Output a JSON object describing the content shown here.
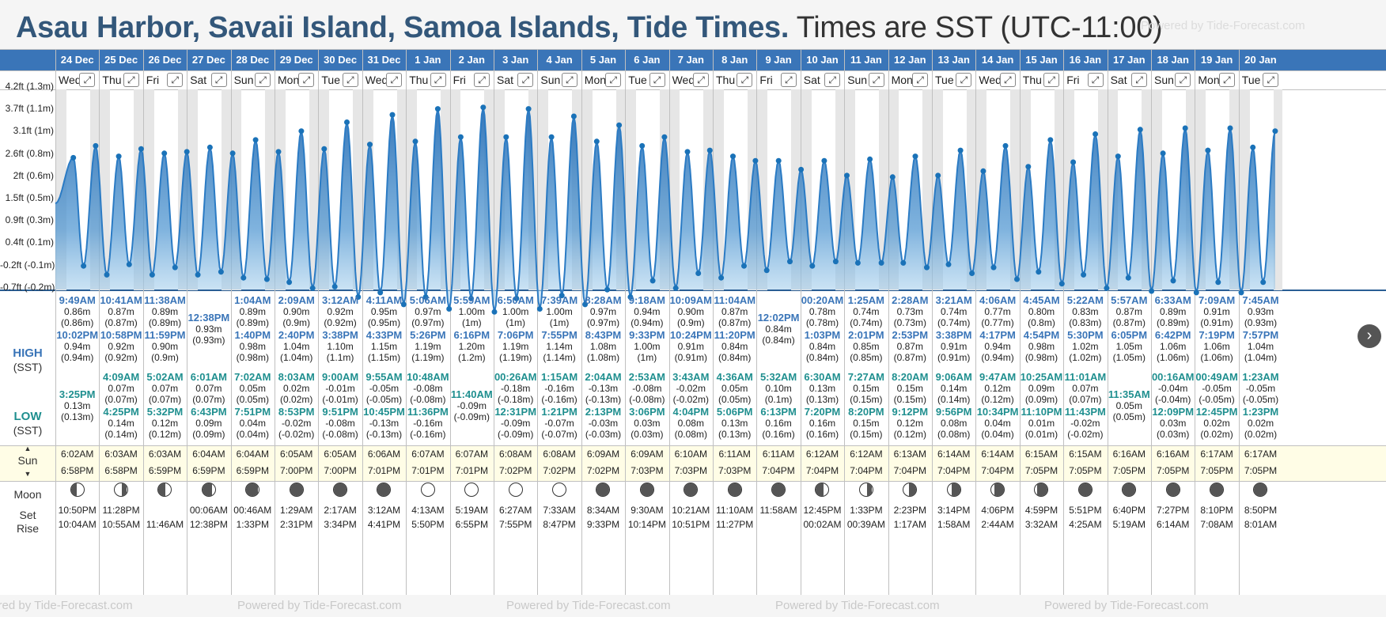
{
  "header": {
    "title_bold": "Asau Harbor, Savaii Island, Samoa Islands, Tide Times.",
    "title_rest": "Times are SST (UTC-11:00)",
    "watermark": "Powered by Tide-Forecast.com"
  },
  "colors": {
    "accent": "#3a75b8",
    "header_bar": "#3a75b8",
    "high_time": "#3a75b8",
    "low_time": "#1f8f8f",
    "sun_band": "#fffde6",
    "night_shade": "#e6e6e6"
  },
  "y_axis": {
    "labels": [
      "4.2ft (1.3m)",
      "3.7ft (1.1m)",
      "3.1ft (1m)",
      "2.6ft (0.8m)",
      "2ft (0.6m)",
      "1.5ft (0.5m)",
      "0.9ft (0.3m)",
      "0.4ft (0.1m)",
      "-0.2ft (-0.1m)",
      "-0.7ft (-0.2m)"
    ]
  },
  "row_headers": {
    "high": "HIGH",
    "high_tz": "(SST)",
    "low": "LOW",
    "low_tz": "(SST)",
    "sun": "Sun",
    "moon": "Moon",
    "set": "Set",
    "rise": "Rise"
  },
  "days": [
    {
      "date": "24 Dec",
      "dow": "Wed",
      "hi": [
        [
          "9:49AM",
          "0.86m",
          "(0.86m)"
        ],
        [
          "10:02PM",
          "0.94m",
          "(0.94m)"
        ]
      ],
      "lo": [
        [
          "3:25PM",
          "0.13m",
          "(0.13m)"
        ]
      ],
      "sunrise": "6:02AM",
      "sunset": "6:58PM",
      "moon_set": "10:50PM",
      "moon_rise": "10:04AM",
      "moon_phase": 0.45
    },
    {
      "date": "25 Dec",
      "dow": "Thu",
      "hi": [
        [
          "10:41AM",
          "0.87m",
          "(0.87m)"
        ],
        [
          "10:58PM",
          "0.92m",
          "(0.92m)"
        ]
      ],
      "lo": [
        [
          "4:09AM",
          "0.07m",
          "(0.07m)"
        ],
        [
          "4:25PM",
          "0.14m",
          "(0.14m)"
        ]
      ],
      "sunrise": "6:03AM",
      "sunset": "6:58PM",
      "moon_set": "11:28PM",
      "moon_rise": "10:55AM",
      "moon_phase": 0.5
    },
    {
      "date": "26 Dec",
      "dow": "Fri",
      "hi": [
        [
          "11:38AM",
          "0.89m",
          "(0.89m)"
        ],
        [
          "11:59PM",
          "0.90m",
          "(0.9m)"
        ]
      ],
      "lo": [
        [
          "5:02AM",
          "0.07m",
          "(0.07m)"
        ],
        [
          "5:32PM",
          "0.12m",
          "(0.12m)"
        ]
      ],
      "sunrise": "6:03AM",
      "sunset": "6:59PM",
      "moon_set": "",
      "moon_rise": "11:46AM",
      "moon_phase": 0.42
    },
    {
      "date": "27 Dec",
      "dow": "Sat",
      "hi": [
        [
          "12:38PM",
          "0.93m",
          "(0.93m)"
        ]
      ],
      "lo": [
        [
          "6:01AM",
          "0.07m",
          "(0.07m)"
        ],
        [
          "6:43PM",
          "0.09m",
          "(0.09m)"
        ]
      ],
      "sunrise": "6:04AM",
      "sunset": "6:59PM",
      "moon_set": "00:06AM",
      "moon_rise": "12:38PM",
      "moon_phase": 0.34
    },
    {
      "date": "28 Dec",
      "dow": "Sun",
      "hi": [
        [
          "1:04AM",
          "0.89m",
          "(0.89m)"
        ],
        [
          "1:40PM",
          "0.98m",
          "(0.98m)"
        ]
      ],
      "lo": [
        [
          "7:02AM",
          "0.05m",
          "(0.05m)"
        ],
        [
          "7:51PM",
          "0.04m",
          "(0.04m)"
        ]
      ],
      "sunrise": "6:04AM",
      "sunset": "6:59PM",
      "moon_set": "00:46AM",
      "moon_rise": "1:33PM",
      "moon_phase": 0.26
    },
    {
      "date": "29 Dec",
      "dow": "Mon",
      "hi": [
        [
          "2:09AM",
          "0.90m",
          "(0.9m)"
        ],
        [
          "2:40PM",
          "1.04m",
          "(1.04m)"
        ]
      ],
      "lo": [
        [
          "8:03AM",
          "0.02m",
          "(0.02m)"
        ],
        [
          "8:53PM",
          "-0.02m",
          "(-0.02m)"
        ]
      ],
      "sunrise": "6:05AM",
      "sunset": "7:00PM",
      "moon_set": "1:29AM",
      "moon_rise": "2:31PM",
      "moon_phase": 0.18
    },
    {
      "date": "30 Dec",
      "dow": "Tue",
      "hi": [
        [
          "3:12AM",
          "0.92m",
          "(0.92m)"
        ],
        [
          "3:38PM",
          "1.10m",
          "(1.1m)"
        ]
      ],
      "lo": [
        [
          "9:00AM",
          "-0.01m",
          "(-0.01m)"
        ],
        [
          "9:51PM",
          "-0.08m",
          "(-0.08m)"
        ]
      ],
      "sunrise": "6:05AM",
      "sunset": "7:00PM",
      "moon_set": "2:17AM",
      "moon_rise": "3:34PM",
      "moon_phase": 0.1
    },
    {
      "date": "31 Dec",
      "dow": "Wed",
      "hi": [
        [
          "4:11AM",
          "0.95m",
          "(0.95m)"
        ],
        [
          "4:33PM",
          "1.15m",
          "(1.15m)"
        ]
      ],
      "lo": [
        [
          "9:55AM",
          "-0.05m",
          "(-0.05m)"
        ],
        [
          "10:45PM",
          "-0.13m",
          "(-0.13m)"
        ]
      ],
      "sunrise": "6:06AM",
      "sunset": "7:01PM",
      "moon_set": "3:12AM",
      "moon_rise": "4:41PM",
      "moon_phase": 0.05
    },
    {
      "date": "1 Jan",
      "dow": "Thu",
      "hi": [
        [
          "5:06AM",
          "0.97m",
          "(0.97m)"
        ],
        [
          "5:26PM",
          "1.19m",
          "(1.19m)"
        ]
      ],
      "lo": [
        [
          "10:48AM",
          "-0.08m",
          "(-0.08m)"
        ],
        [
          "11:36PM",
          "-0.16m",
          "(-0.16m)"
        ]
      ],
      "sunrise": "6:07AM",
      "sunset": "7:01PM",
      "moon_set": "4:13AM",
      "moon_rise": "5:50PM",
      "moon_phase": 0.0
    },
    {
      "date": "2 Jan",
      "dow": "Fri",
      "hi": [
        [
          "5:59AM",
          "1.00m",
          "(1m)"
        ],
        [
          "6:16PM",
          "1.20m",
          "(1.2m)"
        ]
      ],
      "lo": [
        [
          "11:40AM",
          "-0.09m",
          "(-0.09m)"
        ]
      ],
      "sunrise": "6:07AM",
      "sunset": "7:01PM",
      "moon_set": "5:19AM",
      "moon_rise": "6:55PM",
      "moon_phase": 0.0
    },
    {
      "date": "3 Jan",
      "dow": "Sat",
      "hi": [
        [
          "6:50AM",
          "1.00m",
          "(1m)"
        ],
        [
          "7:06PM",
          "1.19m",
          "(1.19m)"
        ]
      ],
      "lo": [
        [
          "00:26AM",
          "-0.18m",
          "(-0.18m)"
        ],
        [
          "12:31PM",
          "-0.09m",
          "(-0.09m)"
        ]
      ],
      "sunrise": "6:08AM",
      "sunset": "7:02PM",
      "moon_set": "6:27AM",
      "moon_rise": "7:55PM",
      "moon_phase": 0.0
    },
    {
      "date": "4 Jan",
      "dow": "Sun",
      "hi": [
        [
          "7:39AM",
          "1.00m",
          "(1m)"
        ],
        [
          "7:55PM",
          "1.14m",
          "(1.14m)"
        ]
      ],
      "lo": [
        [
          "1:15AM",
          "-0.16m",
          "(-0.16m)"
        ],
        [
          "1:21PM",
          "-0.07m",
          "(-0.07m)"
        ]
      ],
      "sunrise": "6:08AM",
      "sunset": "7:02PM",
      "moon_set": "7:33AM",
      "moon_rise": "8:47PM",
      "moon_phase": 0.0
    },
    {
      "date": "5 Jan",
      "dow": "Mon",
      "hi": [
        [
          "8:28AM",
          "0.97m",
          "(0.97m)"
        ],
        [
          "8:43PM",
          "1.08m",
          "(1.08m)"
        ]
      ],
      "lo": [
        [
          "2:04AM",
          "-0.13m",
          "(-0.13m)"
        ],
        [
          "2:13PM",
          "-0.03m",
          "(-0.03m)"
        ]
      ],
      "sunrise": "6:09AM",
      "sunset": "7:02PM",
      "moon_set": "8:34AM",
      "moon_rise": "9:33PM",
      "moon_phase": 0.03
    },
    {
      "date": "6 Jan",
      "dow": "Tue",
      "hi": [
        [
          "9:18AM",
          "0.94m",
          "(0.94m)"
        ],
        [
          "9:33PM",
          "1.00m",
          "(1m)"
        ]
      ],
      "lo": [
        [
          "2:53AM",
          "-0.08m",
          "(-0.08m)"
        ],
        [
          "3:06PM",
          "0.03m",
          "(0.03m)"
        ]
      ],
      "sunrise": "6:09AM",
      "sunset": "7:03PM",
      "moon_set": "9:30AM",
      "moon_rise": "10:14PM",
      "moon_phase": 0.05
    },
    {
      "date": "7 Jan",
      "dow": "Wed",
      "hi": [
        [
          "10:09AM",
          "0.90m",
          "(0.9m)"
        ],
        [
          "10:24PM",
          "0.91m",
          "(0.91m)"
        ]
      ],
      "lo": [
        [
          "3:43AM",
          "-0.02m",
          "(-0.02m)"
        ],
        [
          "4:04PM",
          "0.08m",
          "(0.08m)"
        ]
      ],
      "sunrise": "6:10AM",
      "sunset": "7:03PM",
      "moon_set": "10:21AM",
      "moon_rise": "10:51PM",
      "moon_phase": 0.08
    },
    {
      "date": "8 Jan",
      "dow": "Thu",
      "hi": [
        [
          "11:04AM",
          "0.87m",
          "(0.87m)"
        ],
        [
          "11:20PM",
          "0.84m",
          "(0.84m)"
        ]
      ],
      "lo": [
        [
          "4:36AM",
          "0.05m",
          "(0.05m)"
        ],
        [
          "5:06PM",
          "0.13m",
          "(0.13m)"
        ]
      ],
      "sunrise": "6:11AM",
      "sunset": "7:03PM",
      "moon_set": "11:10AM",
      "moon_rise": "11:27PM",
      "moon_phase": 0.1
    },
    {
      "date": "9 Jan",
      "dow": "Fri",
      "hi": [
        [
          "12:02PM",
          "0.84m",
          "(0.84m)"
        ]
      ],
      "lo": [
        [
          "5:32AM",
          "0.10m",
          "(0.1m)"
        ],
        [
          "6:13PM",
          "0.16m",
          "(0.16m)"
        ]
      ],
      "sunrise": "6:11AM",
      "sunset": "7:04PM",
      "moon_set": "11:58AM",
      "moon_rise": "",
      "moon_phase": 0.14
    },
    {
      "date": "10 Jan",
      "dow": "Sat",
      "hi": [
        [
          "00:20AM",
          "0.78m",
          "(0.78m)"
        ],
        [
          "1:03PM",
          "0.84m",
          "(0.84m)"
        ]
      ],
      "lo": [
        [
          "6:30AM",
          "0.13m",
          "(0.13m)"
        ],
        [
          "7:20PM",
          "0.16m",
          "(0.16m)"
        ]
      ],
      "sunrise": "6:12AM",
      "sunset": "7:04PM",
      "moon_set": "12:45PM",
      "moon_rise": "00:02AM",
      "moon_phase": 0.4
    },
    {
      "date": "11 Jan",
      "dow": "Sun",
      "hi": [
        [
          "1:25AM",
          "0.74m",
          "(0.74m)"
        ],
        [
          "2:01PM",
          "0.85m",
          "(0.85m)"
        ]
      ],
      "lo": [
        [
          "7:27AM",
          "0.15m",
          "(0.15m)"
        ],
        [
          "8:20PM",
          "0.15m",
          "(0.15m)"
        ]
      ],
      "sunrise": "6:12AM",
      "sunset": "7:04PM",
      "moon_set": "1:33PM",
      "moon_rise": "00:39AM",
      "moon_phase": 0.5
    },
    {
      "date": "12 Jan",
      "dow": "Mon",
      "hi": [
        [
          "2:28AM",
          "0.73m",
          "(0.73m)"
        ],
        [
          "2:53PM",
          "0.87m",
          "(0.87m)"
        ]
      ],
      "lo": [
        [
          "8:20AM",
          "0.15m",
          "(0.15m)"
        ],
        [
          "9:12PM",
          "0.12m",
          "(0.12m)"
        ]
      ],
      "sunrise": "6:13AM",
      "sunset": "7:04PM",
      "moon_set": "2:23PM",
      "moon_rise": "1:17AM",
      "moon_phase": 0.6
    },
    {
      "date": "13 Jan",
      "dow": "Tue",
      "hi": [
        [
          "3:21AM",
          "0.74m",
          "(0.74m)"
        ],
        [
          "3:38PM",
          "0.91m",
          "(0.91m)"
        ]
      ],
      "lo": [
        [
          "9:06AM",
          "0.14m",
          "(0.14m)"
        ],
        [
          "9:56PM",
          "0.08m",
          "(0.08m)"
        ]
      ],
      "sunrise": "6:14AM",
      "sunset": "7:04PM",
      "moon_set": "3:14PM",
      "moon_rise": "1:58AM",
      "moon_phase": 0.7
    },
    {
      "date": "14 Jan",
      "dow": "Wed",
      "hi": [
        [
          "4:06AM",
          "0.77m",
          "(0.77m)"
        ],
        [
          "4:17PM",
          "0.94m",
          "(0.94m)"
        ]
      ],
      "lo": [
        [
          "9:47AM",
          "0.12m",
          "(0.12m)"
        ],
        [
          "10:34PM",
          "0.04m",
          "(0.04m)"
        ]
      ],
      "sunrise": "6:14AM",
      "sunset": "7:04PM",
      "moon_set": "4:06PM",
      "moon_rise": "2:44AM",
      "moon_phase": 0.8
    },
    {
      "date": "15 Jan",
      "dow": "Thu",
      "hi": [
        [
          "4:45AM",
          "0.80m",
          "(0.8m)"
        ],
        [
          "4:54PM",
          "0.98m",
          "(0.98m)"
        ]
      ],
      "lo": [
        [
          "10:25AM",
          "0.09m",
          "(0.09m)"
        ],
        [
          "11:10PM",
          "0.01m",
          "(0.01m)"
        ]
      ],
      "sunrise": "6:15AM",
      "sunset": "7:05PM",
      "moon_set": "4:59PM",
      "moon_rise": "3:32AM",
      "moon_phase": 0.86
    },
    {
      "date": "16 Jan",
      "dow": "Fri",
      "hi": [
        [
          "5:22AM",
          "0.83m",
          "(0.83m)"
        ],
        [
          "5:30PM",
          "1.02m",
          "(1.02m)"
        ]
      ],
      "lo": [
        [
          "11:01AM",
          "0.07m",
          "(0.07m)"
        ],
        [
          "11:43PM",
          "-0.02m",
          "(-0.02m)"
        ]
      ],
      "sunrise": "6:15AM",
      "sunset": "7:05PM",
      "moon_set": "5:51PM",
      "moon_rise": "4:25AM",
      "moon_phase": 0.9
    },
    {
      "date": "17 Jan",
      "dow": "Sat",
      "hi": [
        [
          "5:57AM",
          "0.87m",
          "(0.87m)"
        ],
        [
          "6:05PM",
          "1.05m",
          "(1.05m)"
        ]
      ],
      "lo": [
        [
          "11:35AM",
          "0.05m",
          "(0.05m)"
        ]
      ],
      "sunrise": "6:16AM",
      "sunset": "7:05PM",
      "moon_set": "6:40PM",
      "moon_rise": "5:19AM",
      "moon_phase": 0.94
    },
    {
      "date": "18 Jan",
      "dow": "Sun",
      "hi": [
        [
          "6:33AM",
          "0.89m",
          "(0.89m)"
        ],
        [
          "6:42PM",
          "1.06m",
          "(1.06m)"
        ]
      ],
      "lo": [
        [
          "00:16AM",
          "-0.04m",
          "(-0.04m)"
        ],
        [
          "12:09PM",
          "0.03m",
          "(0.03m)"
        ]
      ],
      "sunrise": "6:16AM",
      "sunset": "7:05PM",
      "moon_set": "7:27PM",
      "moon_rise": "6:14AM",
      "moon_phase": 0.97
    },
    {
      "date": "19 Jan",
      "dow": "Mon",
      "hi": [
        [
          "7:09AM",
          "0.91m",
          "(0.91m)"
        ],
        [
          "7:19PM",
          "1.06m",
          "(1.06m)"
        ]
      ],
      "lo": [
        [
          "00:49AM",
          "-0.05m",
          "(-0.05m)"
        ],
        [
          "12:45PM",
          "0.02m",
          "(0.02m)"
        ]
      ],
      "sunrise": "6:17AM",
      "sunset": "7:05PM",
      "moon_set": "8:10PM",
      "moon_rise": "7:08AM",
      "moon_phase": 0.98
    },
    {
      "date": "20 Jan",
      "dow": "Tue",
      "hi": [
        [
          "7:45AM",
          "0.93m",
          "(0.93m)"
        ],
        [
          "7:57PM",
          "1.04m",
          "(1.04m)"
        ]
      ],
      "lo": [
        [
          "1:23AM",
          "-0.05m",
          "(-0.05m)"
        ],
        [
          "1:23PM",
          "0.02m",
          "(0.02m)"
        ]
      ],
      "sunrise": "6:17AM",
      "sunset": "7:05PM",
      "moon_set": "8:50PM",
      "moon_rise": "8:01AM",
      "moon_phase": 1.0
    }
  ]
}
